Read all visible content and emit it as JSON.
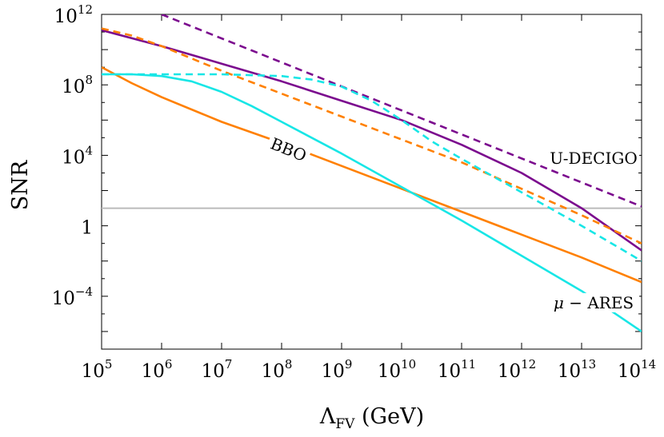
{
  "chart_data": {
    "type": "line",
    "title": "",
    "xlabel": {
      "main": "Λ",
      "sub": "FV",
      "unit": " (GeV)"
    },
    "ylabel": "SNR",
    "x_scale": "log10",
    "y_scale": "log10",
    "xlim_log10": [
      5,
      14
    ],
    "ylim_log10": [
      -7,
      12
    ],
    "x_ticks": [
      {
        "base": "10",
        "exp": "5"
      },
      {
        "base": "10",
        "exp": "6"
      },
      {
        "base": "10",
        "exp": "7"
      },
      {
        "base": "10",
        "exp": "8"
      },
      {
        "base": "10",
        "exp": "9"
      },
      {
        "base": "10",
        "exp": "10"
      },
      {
        "base": "10",
        "exp": "11"
      },
      {
        "base": "10",
        "exp": "12"
      },
      {
        "base": "10",
        "exp": "13"
      },
      {
        "base": "10",
        "exp": "14"
      }
    ],
    "y_ticks": [
      {
        "log10": 12,
        "base": "10",
        "exp": "12"
      },
      {
        "log10": 8,
        "base": "10",
        "exp": "8"
      },
      {
        "log10": 4,
        "base": "10",
        "exp": "4"
      },
      {
        "log10": 0,
        "base": "1",
        "exp": ""
      },
      {
        "log10": -4,
        "base": "10",
        "exp": "−4"
      }
    ],
    "colors": {
      "purple": "#7B0A8E",
      "orange": "#FF8000",
      "cyan": "#18E6E6",
      "threshold": "#BBBBBB"
    },
    "threshold_log10": 1,
    "series": [
      {
        "name": "U-DECIGO (dashed)",
        "color_key": "purple",
        "style": "dashed",
        "points": [
          [
            6,
            12
          ],
          [
            14,
            1.1
          ]
        ]
      },
      {
        "name": "U-DECIGO (solid)",
        "color_key": "purple",
        "style": "solid",
        "points": [
          [
            5,
            11.1
          ],
          [
            6,
            10.2
          ],
          [
            7,
            9.2
          ],
          [
            8,
            8.2
          ],
          [
            9,
            7.1
          ],
          [
            10,
            6.0
          ],
          [
            11,
            4.6
          ],
          [
            12,
            3.0
          ],
          [
            13,
            1.0
          ],
          [
            14,
            -1.4
          ]
        ]
      },
      {
        "name": "BBO (dashed)",
        "color_key": "orange",
        "style": "dashed",
        "points": [
          [
            5,
            11.2
          ],
          [
            5.5,
            10.8
          ],
          [
            6,
            10.2
          ],
          [
            7,
            8.8
          ],
          [
            8,
            7.5
          ],
          [
            9,
            6.2
          ],
          [
            10,
            4.9
          ],
          [
            11,
            3.6
          ],
          [
            12,
            2.1
          ],
          [
            13,
            0.6
          ],
          [
            14,
            -1.0
          ]
        ]
      },
      {
        "name": "BBO (solid)",
        "color_key": "orange",
        "style": "solid",
        "points": [
          [
            5,
            9.0
          ],
          [
            5.5,
            8.1
          ],
          [
            6,
            7.3
          ],
          [
            7,
            5.9
          ],
          [
            8,
            4.7
          ],
          [
            9,
            3.4
          ],
          [
            10,
            2.1
          ],
          [
            11,
            0.8
          ],
          [
            12,
            -0.5
          ],
          [
            13,
            -1.8
          ],
          [
            14,
            -3.2
          ]
        ]
      },
      {
        "name": "μ-ARES (dashed)",
        "color_key": "cyan",
        "style": "dashed",
        "points": [
          [
            5,
            8.6
          ],
          [
            6,
            8.6
          ],
          [
            7,
            8.6
          ],
          [
            8,
            8.5
          ],
          [
            8.5,
            8.3
          ],
          [
            9,
            7.9
          ],
          [
            9.5,
            7.1
          ],
          [
            10,
            6.0
          ],
          [
            10.5,
            4.8
          ],
          [
            11,
            3.8
          ],
          [
            12,
            1.9
          ],
          [
            13,
            0.0
          ],
          [
            14,
            -2.0
          ]
        ]
      },
      {
        "name": "μ-ARES (solid)",
        "color_key": "cyan",
        "style": "solid",
        "points": [
          [
            5,
            8.6
          ],
          [
            5.5,
            8.6
          ],
          [
            6,
            8.5
          ],
          [
            6.5,
            8.2
          ],
          [
            7,
            7.6
          ],
          [
            7.5,
            6.8
          ],
          [
            8,
            5.9
          ],
          [
            9,
            4.1
          ],
          [
            10,
            2.2
          ],
          [
            11,
            0.3
          ],
          [
            12,
            -1.7
          ],
          [
            13,
            -3.7
          ],
          [
            14,
            -6.0
          ]
        ]
      }
    ],
    "annotations": [
      {
        "text": "BBO",
        "pos": [
          8.1,
          4.2
        ],
        "rotate": 22,
        "gap": true
      },
      {
        "text": "U-DECIGO",
        "pos": [
          13.2,
          3.7
        ],
        "rotate": 0,
        "gap": false
      },
      {
        "text_math": "μ",
        "text": "− ARES",
        "pos": [
          13.2,
          -4.5
        ],
        "rotate": 0,
        "gap": false
      }
    ]
  }
}
